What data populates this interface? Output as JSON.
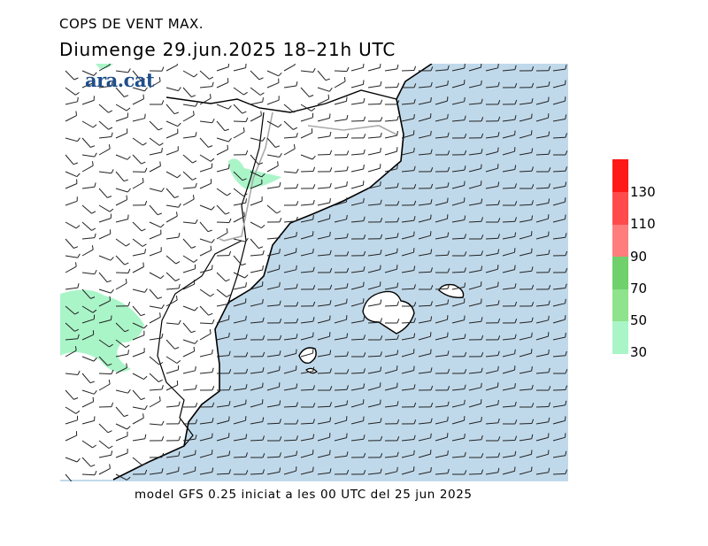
{
  "header": {
    "title": "COPS DE VENT MAX.",
    "subtitle": "Diumenge  29.jun.2025 18–21h UTC"
  },
  "brand": {
    "name": "ara.cat"
  },
  "footer": {
    "model_info": "model GFS 0.25 iniciat a les 00 UTC del 25 jun 2025"
  },
  "map": {
    "sea_color": "#c0d9ea",
    "land_color": "#ffffff",
    "gust_area_color": "#aaf5c8",
    "coast_color": "#000000",
    "border_color": "#a9a9a9",
    "barb_color": "#222222",
    "islands": [
      "Mallorca",
      "Menorca",
      "Eivissa"
    ]
  },
  "legend": {
    "items": [
      {
        "label": "30",
        "color": "#aaf5c8"
      },
      {
        "label": "50",
        "color": "#8ee38c"
      },
      {
        "label": "70",
        "color": "#6fd06c"
      },
      {
        "label": "90",
        "color": "#ff7d7d"
      },
      {
        "label": "110",
        "color": "#ff4b4b"
      },
      {
        "label": "130",
        "color": "#ff1818"
      }
    ],
    "top_color": "#ee0000"
  }
}
